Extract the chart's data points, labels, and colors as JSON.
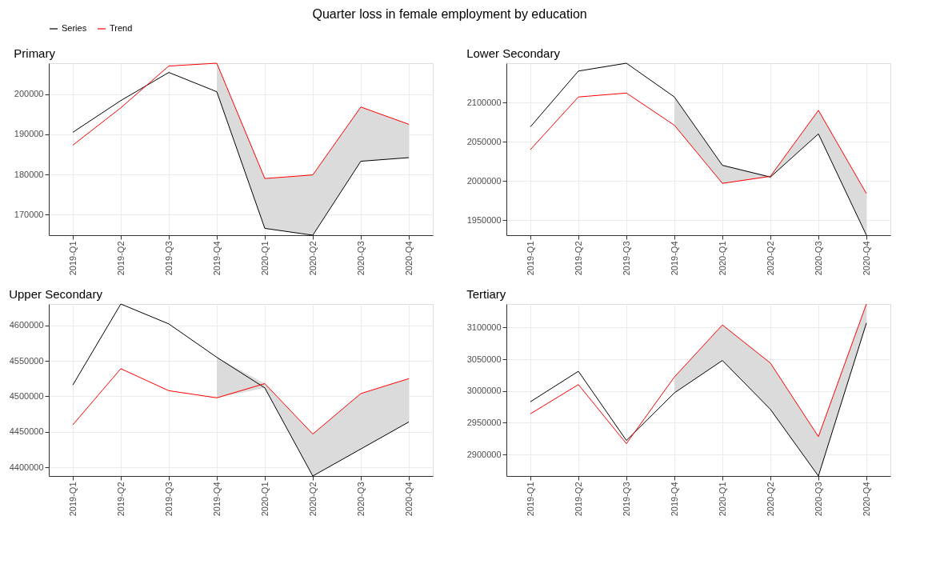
{
  "chart_data": [
    {
      "type": "line",
      "title": "Primary",
      "annotations": [
        "Quarter loss in female employment by education"
      ],
      "legend": "top",
      "grid": true,
      "categories": [
        "2019-Q1",
        "2019-Q2",
        "2019-Q3",
        "2019-Q4",
        "2020-Q1",
        "2020-Q2",
        "2020-Q3",
        "2020-Q4"
      ],
      "ylim": [
        164900,
        207700
      ],
      "yticks": [
        170000,
        180000,
        190000,
        200000
      ],
      "series": [
        {
          "name": "Series",
          "color": "#000000",
          "values": [
            190500,
            198400,
            205400,
            200600,
            166600,
            164900,
            183300,
            184200
          ]
        },
        {
          "name": "Trend",
          "color": "#ff0000",
          "values": [
            187300,
            196600,
            207000,
            207700,
            179000,
            179900,
            196800,
            192500
          ],
          "lower": [
            null,
            null,
            null,
            200600,
            166600,
            164900,
            183300,
            184200
          ],
          "upper": [
            null,
            null,
            null,
            207700,
            179000,
            179900,
            196800,
            192500
          ]
        }
      ]
    },
    {
      "type": "line",
      "title": "Lower Secondary",
      "grid": true,
      "categories": [
        "2019-Q1",
        "2019-Q2",
        "2019-Q3",
        "2019-Q4",
        "2020-Q1",
        "2020-Q2",
        "2020-Q3",
        "2020-Q4"
      ],
      "ylim": [
        1931000,
        2150000
      ],
      "yticks": [
        1950000,
        2000000,
        2050000,
        2100000
      ],
      "series": [
        {
          "name": "Series",
          "color": "#000000",
          "values": [
            2069000,
            2140000,
            2150000,
            2107000,
            2020000,
            2005000,
            2060000,
            1931000
          ]
        },
        {
          "name": "Trend",
          "color": "#ff0000",
          "values": [
            2040000,
            2107000,
            2112000,
            2071000,
            1997000,
            2006000,
            2090000,
            1984000
          ],
          "lower": [
            null,
            null,
            null,
            2071000,
            1997000,
            2005000,
            2060000,
            1931000
          ],
          "upper": [
            null,
            null,
            null,
            2107000,
            2020000,
            2006000,
            2090000,
            1984000
          ]
        }
      ]
    },
    {
      "type": "line",
      "title": "Upper Secondary",
      "grid": true,
      "categories": [
        "2019-Q1",
        "2019-Q2",
        "2019-Q3",
        "2019-Q4",
        "2020-Q1",
        "2020-Q2",
        "2020-Q3",
        "2020-Q4"
      ],
      "ylim": [
        4388000,
        4630000
      ],
      "yticks": [
        4400000,
        4450000,
        4500000,
        4550000,
        4600000
      ],
      "series": [
        {
          "name": "Series",
          "color": "#000000",
          "values": [
            4516000,
            4630000,
            4602000,
            4555000,
            4512000,
            4388000,
            4426000,
            4464000
          ]
        },
        {
          "name": "Trend",
          "color": "#ff0000",
          "values": [
            4460000,
            4539000,
            4508000,
            4498000,
            4518000,
            4447000,
            4504000,
            4525000
          ],
          "lower": [
            null,
            null,
            null,
            4498000,
            4512000,
            4388000,
            4426000,
            4464000
          ],
          "upper": [
            null,
            null,
            null,
            4555000,
            4518000,
            4447000,
            4504000,
            4525000
          ]
        }
      ]
    },
    {
      "type": "line",
      "title": "Tertiary",
      "grid": true,
      "categories": [
        "2019-Q1",
        "2019-Q2",
        "2019-Q3",
        "2019-Q4",
        "2020-Q1",
        "2020-Q2",
        "2020-Q3",
        "2020-Q4"
      ],
      "ylim": [
        2866000,
        3137000
      ],
      "yticks": [
        2900000,
        2950000,
        3000000,
        3050000,
        3100000
      ],
      "series": [
        {
          "name": "Series",
          "color": "#000000",
          "values": [
            2983000,
            3031000,
            2922000,
            2997000,
            3048000,
            2971000,
            2866000,
            3107000
          ]
        },
        {
          "name": "Trend",
          "color": "#ff0000",
          "values": [
            2964000,
            3010000,
            2917000,
            3022000,
            3104000,
            3044000,
            2928000,
            3137000
          ],
          "lower": [
            null,
            null,
            null,
            2997000,
            3048000,
            2971000,
            2866000,
            3107000
          ],
          "upper": [
            null,
            null,
            null,
            3022000,
            3104000,
            3044000,
            2928000,
            3137000
          ]
        }
      ]
    }
  ]
}
